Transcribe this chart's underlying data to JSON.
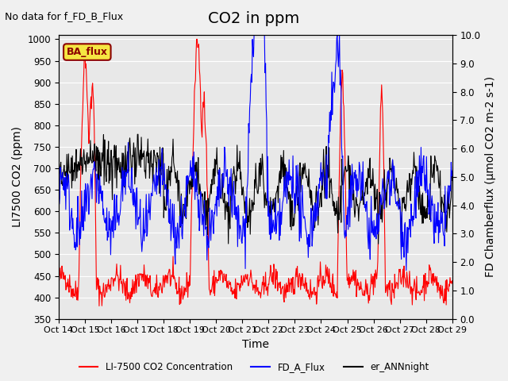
{
  "title": "CO2 in ppm",
  "top_left_note": "No data for f_FD_B_Flux",
  "box_label": "BA_flux",
  "xlabel": "Time",
  "ylabel_left": "LI7500 CO2 (ppm)",
  "ylabel_right": "FD Chamberflux (μmol CO2 m-2 s-1)",
  "ylim_left": [
    350,
    1010
  ],
  "ylim_right": [
    0.0,
    10.0
  ],
  "yticks_left": [
    350,
    400,
    450,
    500,
    550,
    600,
    650,
    700,
    750,
    800,
    850,
    900,
    950,
    1000
  ],
  "yticks_right": [
    0.0,
    1.0,
    2.0,
    3.0,
    4.0,
    5.0,
    6.0,
    7.0,
    8.0,
    9.0,
    10.0
  ],
  "xtick_labels": [
    "Oct 14",
    "Oct 15",
    "Oct 16",
    "Oct 17",
    "Oct 18",
    "Oct 19",
    "Oct 20",
    "Oct 21",
    "Oct 22",
    "Oct 23",
    "Oct 24",
    "Oct 25",
    "Oct 26",
    "Oct 27",
    "Oct 28",
    "Oct 29"
  ],
  "legend_entries": [
    {
      "label": "LI-7500 CO2 Concentration",
      "color": "red",
      "linestyle": "-"
    },
    {
      "label": "FD_A_Flux",
      "color": "blue",
      "linestyle": "-"
    },
    {
      "label": "er_ANNnight",
      "color": "black",
      "linestyle": "-"
    }
  ],
  "background_color": "#f0f0f0",
  "plot_bg_color": "#e8e8e8",
  "title_fontsize": 14,
  "label_fontsize": 10,
  "tick_fontsize": 8.5,
  "note_fontsize": 9
}
